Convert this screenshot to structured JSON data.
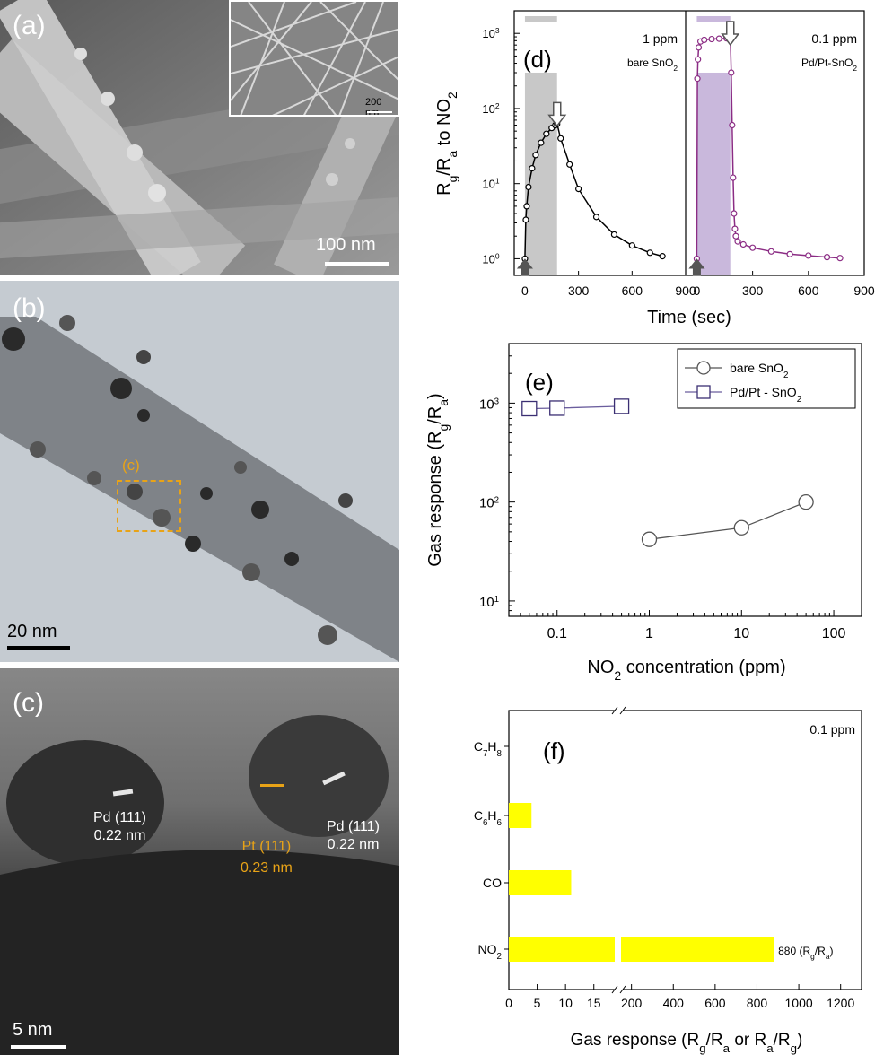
{
  "panel_a": {
    "label": "(a)",
    "scale_label": "100 nm",
    "inset_scale_label": "200 nm"
  },
  "panel_b": {
    "label": "(b)",
    "scale_label": "20 nm",
    "box_label": "(c)"
  },
  "panel_c": {
    "label": "(c)",
    "scale_label": "5 nm",
    "annotations": [
      {
        "lattice": "Pd (111)",
        "spacing": "0.22 nm",
        "color": "#ffffff"
      },
      {
        "lattice": "Pt (111)",
        "spacing": "0.23 nm",
        "color": "#e8a317"
      },
      {
        "lattice": "Pd (111)",
        "spacing": "0.22 nm",
        "color": "#ffffff"
      }
    ]
  },
  "panel_d": {
    "label": "(d)",
    "ylabel_main": "R",
    "ylabel_sub1": "g",
    "ylabel_mid": "/R",
    "ylabel_sub2": "a",
    "ylabel_tail": " to NO",
    "ylabel_sub3": "2",
    "xlabel": "Time (sec)",
    "ytick_labels": [
      "10",
      "10",
      "10",
      "10"
    ],
    "ytick_exps": [
      "0",
      "1",
      "2",
      "3"
    ],
    "xtick_labels": [
      "0",
      "300",
      "600",
      "900"
    ],
    "left_conc": "1 ppm",
    "left_material": "bare SnO",
    "left_material_sub": "2",
    "right_conc": "0.1 ppm",
    "right_material": "Pd/Pt-SnO",
    "right_material_sub": "2",
    "colors": {
      "bare": "#000000",
      "pdpt": "#8b2c84",
      "shade_bare": "#c8c8c8",
      "shade_pdpt": "#c9b8dc"
    }
  },
  "panel_e": {
    "label": "(e)",
    "ylabel_main": "Gas response (R",
    "ylabel_sub1": "g",
    "ylabel_mid": "/R",
    "ylabel_sub2": "a",
    "ylabel_tail": ")",
    "xlabel_main": "NO",
    "xlabel_sub": "2",
    "xlabel_tail": " concentration (ppm)",
    "ytick_labels": [
      "10",
      "10",
      "10"
    ],
    "ytick_exps": [
      "1",
      "2",
      "3"
    ],
    "xtick_labels": [
      "0.1",
      "1",
      "10",
      "100"
    ],
    "legend": [
      {
        "name": "bare SnO",
        "sub": "2"
      },
      {
        "name": "Pd/Pt - SnO",
        "sub": "2"
      }
    ]
  },
  "panel_f": {
    "label": "(f)",
    "conc": "0.1 ppm",
    "categories": [
      {
        "main": "C",
        "s1": "7",
        "mid": "H",
        "s2": "8"
      },
      {
        "main": "C",
        "s1": "6",
        "mid": "H",
        "s2": "6"
      },
      {
        "main": "CO",
        "s1": "",
        "mid": "",
        "s2": ""
      },
      {
        "main": "NO",
        "s1": "2",
        "mid": "",
        "s2": ""
      }
    ],
    "xtick_labels_low": [
      "0",
      "5",
      "10",
      "15"
    ],
    "xtick_labels_high": [
      "200",
      "400",
      "600",
      "800",
      "1000",
      "1200"
    ],
    "xlabel_main": "Gas response (R",
    "xlabel_s1": "g",
    "xlabel_m1": "/R",
    "xlabel_s2": "a",
    "xlabel_m2": " or R",
    "xlabel_s3": "a",
    "xlabel_m3": "/R",
    "xlabel_s4": "g",
    "xlabel_tail": ")",
    "bar_note_main": "880 (R",
    "bar_note_s1": "g",
    "bar_note_mid": "/R",
    "bar_note_s2": "a",
    "bar_note_tail": ")",
    "bar_color": "#ffff00"
  },
  "chart_data": [
    {
      "type": "scatter",
      "title": "",
      "xlabel": "Time (sec)",
      "ylabel": "Rg/Ra to NO2",
      "yscale": "log",
      "ylim": [
        0.6,
        2000
      ],
      "subplots": [
        {
          "annotation": "1 ppm bare SnO2",
          "xlim": [
            -60,
            900
          ],
          "shaded_interval": [
            0,
            180
          ],
          "series": [
            {
              "name": "bare SnO2",
              "x": [
                0,
                5,
                10,
                20,
                40,
                60,
                90,
                120,
                150,
                170,
                180,
                200,
                250,
                300,
                400,
                500,
                600,
                700,
                770
              ],
              "y": [
                1,
                3.3,
                5,
                9,
                16,
                24,
                35,
                46,
                55,
                60,
                62,
                40,
                18,
                8.5,
                3.6,
                2.1,
                1.5,
                1.2,
                1.08
              ]
            }
          ]
        },
        {
          "annotation": "0.1 ppm Pd/Pt-SnO2",
          "xlim": [
            -60,
            900
          ],
          "shaded_interval": [
            0,
            180
          ],
          "series": [
            {
              "name": "Pd/Pt-SnO2",
              "x": [
                0,
                3,
                6,
                10,
                20,
                40,
                80,
                120,
                160,
                180,
                185,
                190,
                195,
                200,
                205,
                210,
                220,
                250,
                300,
                400,
                500,
                600,
                700,
                770
              ],
              "y": [
                1,
                250,
                450,
                650,
                780,
                820,
                840,
                850,
                860,
                860,
                300,
                60,
                12,
                4,
                2.5,
                2,
                1.7,
                1.55,
                1.4,
                1.25,
                1.15,
                1.1,
                1.05,
                1.02
              ]
            }
          ]
        }
      ]
    },
    {
      "type": "line",
      "title": "",
      "xlabel": "NO2 concentration (ppm)",
      "ylabel": "Gas response (Rg/Ra)",
      "xscale": "log",
      "yscale": "log",
      "xlim": [
        0.03,
        200
      ],
      "ylim": [
        7,
        4000
      ],
      "legend": "top-right",
      "series": [
        {
          "name": "bare SnO2",
          "x": [
            1,
            10,
            50
          ],
          "y": [
            42,
            55,
            100
          ]
        },
        {
          "name": "Pd/Pt - SnO2",
          "x": [
            0.05,
            0.1,
            0.5
          ],
          "y": [
            880,
            890,
            930
          ]
        }
      ]
    },
    {
      "type": "bar",
      "orientation": "horizontal",
      "title": "",
      "annotation": "0.1 ppm",
      "xlabel": "Gas response (Rg/Ra or Ra/Rg)",
      "categories": [
        "C7H8",
        "C6H6",
        "CO",
        "NO2"
      ],
      "values": [
        0,
        4,
        11,
        880
      ],
      "x_axis_break": [
        19,
        150
      ],
      "xlim": [
        0,
        1300
      ]
    }
  ]
}
